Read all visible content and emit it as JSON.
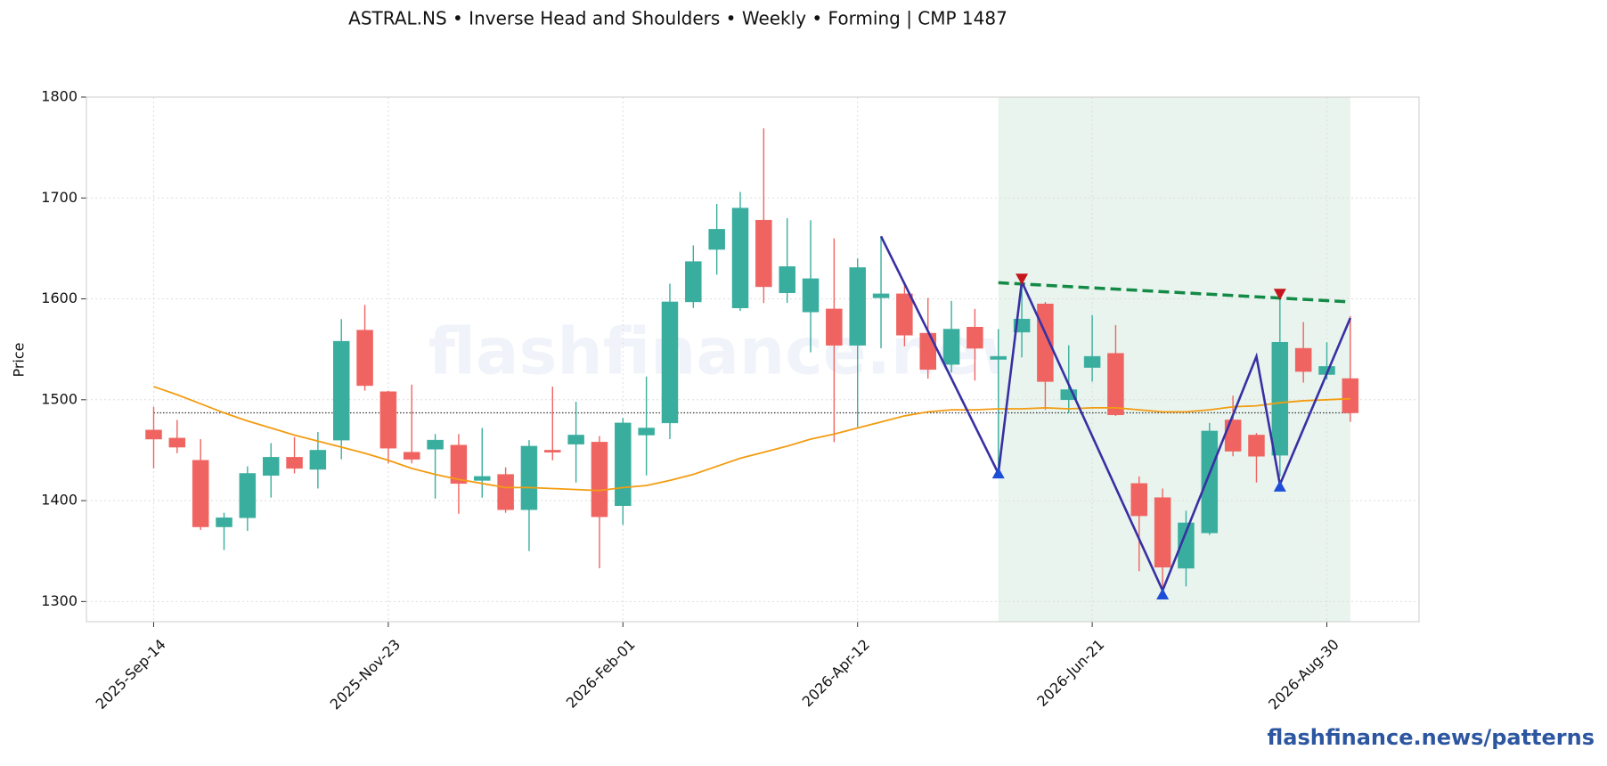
{
  "chart_data": {
    "type": "candlestick",
    "title": "ASTRAL.NS  •  Inverse Head and Shoulders  •  Weekly  •  Forming  |  CMP 1487",
    "y_label": "Price",
    "watermark": "flashfinance.news",
    "footer": "flashfinance.news/patterns",
    "categories": [
      "2025-Sep-14",
      null,
      null,
      null,
      null,
      null,
      null,
      null,
      null,
      null,
      "2025-Nov-23",
      null,
      null,
      null,
      null,
      null,
      null,
      null,
      null,
      null,
      "2026-Feb-01",
      null,
      null,
      null,
      null,
      null,
      null,
      null,
      null,
      null,
      "2026-Apr-12",
      null,
      null,
      null,
      null,
      null,
      null,
      null,
      null,
      null,
      "2026-Jun-21",
      null,
      null,
      null,
      null,
      null,
      null,
      null,
      null,
      null,
      "2026-Aug-30",
      null
    ],
    "open": [
      1470,
      1462,
      1440,
      1374,
      1383,
      1425,
      1443,
      1431,
      1460,
      1569,
      1508,
      1448,
      1451,
      1455,
      1420,
      1426,
      1391,
      1450,
      1456,
      1458,
      1395,
      1465,
      1477,
      1597,
      1649,
      1591,
      1678,
      1606,
      1587,
      1590,
      1554,
      1601,
      1605,
      1566,
      1535,
      1572,
      1540,
      1567,
      1595,
      1500,
      1532,
      1546,
      1417,
      1403,
      1333,
      1368,
      1480,
      1465,
      1445,
      1551,
      1525,
      1521
    ],
    "high": [
      1493,
      1480,
      1461,
      1388,
      1434,
      1457,
      1463,
      1468,
      1580,
      1594,
      1509,
      1515,
      1466,
      1466,
      1472,
      1433,
      1460,
      1513,
      1498,
      1464,
      1482,
      1523,
      1615,
      1653,
      1694,
      1706,
      1769,
      1680,
      1678,
      1660,
      1640,
      1662,
      1617,
      1601,
      1598,
      1590,
      1570,
      1615,
      1597,
      1554,
      1584,
      1574,
      1424,
      1412,
      1390,
      1477,
      1504,
      1467,
      1607,
      1577,
      1557,
      1583
    ],
    "low": [
      1432,
      1447,
      1371,
      1351,
      1370,
      1403,
      1427,
      1412,
      1441,
      1509,
      1437,
      1437,
      1402,
      1387,
      1403,
      1388,
      1350,
      1440,
      1418,
      1333,
      1376,
      1425,
      1461,
      1591,
      1624,
      1588,
      1596,
      1596,
      1547,
      1458,
      1473,
      1551,
      1553,
      1521,
      1527,
      1519,
      1426,
      1542,
      1490,
      1487,
      1518,
      1484,
      1330,
      1307,
      1315,
      1366,
      1444,
      1418,
      1424,
      1517,
      1520,
      1478
    ],
    "close": [
      1461,
      1453,
      1374,
      1383,
      1427,
      1443,
      1432,
      1450,
      1558,
      1514,
      1452,
      1441,
      1460,
      1417,
      1424,
      1391,
      1454,
      1448,
      1465,
      1384,
      1477,
      1472,
      1597,
      1637,
      1669,
      1690,
      1612,
      1632,
      1620,
      1554,
      1631,
      1605,
      1564,
      1530,
      1570,
      1551,
      1543,
      1580,
      1518,
      1510,
      1543,
      1485,
      1385,
      1334,
      1378,
      1469,
      1449,
      1444,
      1557,
      1528,
      1533,
      1487
    ],
    "up_color": "#3aae9e",
    "down_color": "#ef6461",
    "moving_average": {
      "color": "#f39c12",
      "values": [
        1513,
        1505,
        1496,
        1487,
        1479,
        1472,
        1465,
        1459,
        1453,
        1447,
        1440,
        1432,
        1426,
        1421,
        1417,
        1413,
        1413,
        1412,
        1411,
        1410,
        1413,
        1415,
        1420,
        1426,
        1434,
        1442,
        1448,
        1454,
        1461,
        1466,
        1472,
        1478,
        1484,
        1488,
        1490,
        1490,
        1491,
        1491,
        1492,
        1491,
        1492,
        1492,
        1490,
        1488,
        1488,
        1490,
        1493,
        1494,
        1497,
        1499,
        1500,
        1501
      ]
    },
    "reference_line": {
      "value": 1487,
      "color": "#333333"
    },
    "pattern": {
      "color": "#3730a3",
      "index": [
        31,
        36,
        37,
        43,
        47,
        48,
        51
      ],
      "values": [
        1662,
        1427,
        1617,
        1311,
        1543,
        1416,
        1581
      ]
    },
    "troughs": {
      "color": "#1d4ed8",
      "index": [
        36,
        43,
        48
      ],
      "values": [
        1427,
        1307,
        1414
      ]
    },
    "peaks": {
      "color": "#c5161d",
      "index": [
        37,
        48
      ],
      "values": [
        1620,
        1605
      ]
    },
    "neckline": {
      "color": "#138a45",
      "index": [
        36,
        51
      ],
      "values": [
        1616,
        1597
      ]
    },
    "zone": {
      "color": "#e9f4ee",
      "index": [
        36,
        51
      ]
    },
    "ylim": [
      1280,
      1800
    ],
    "yticks": [
      1300,
      1400,
      1500,
      1600,
      1700,
      1800
    ],
    "grid": true
  }
}
